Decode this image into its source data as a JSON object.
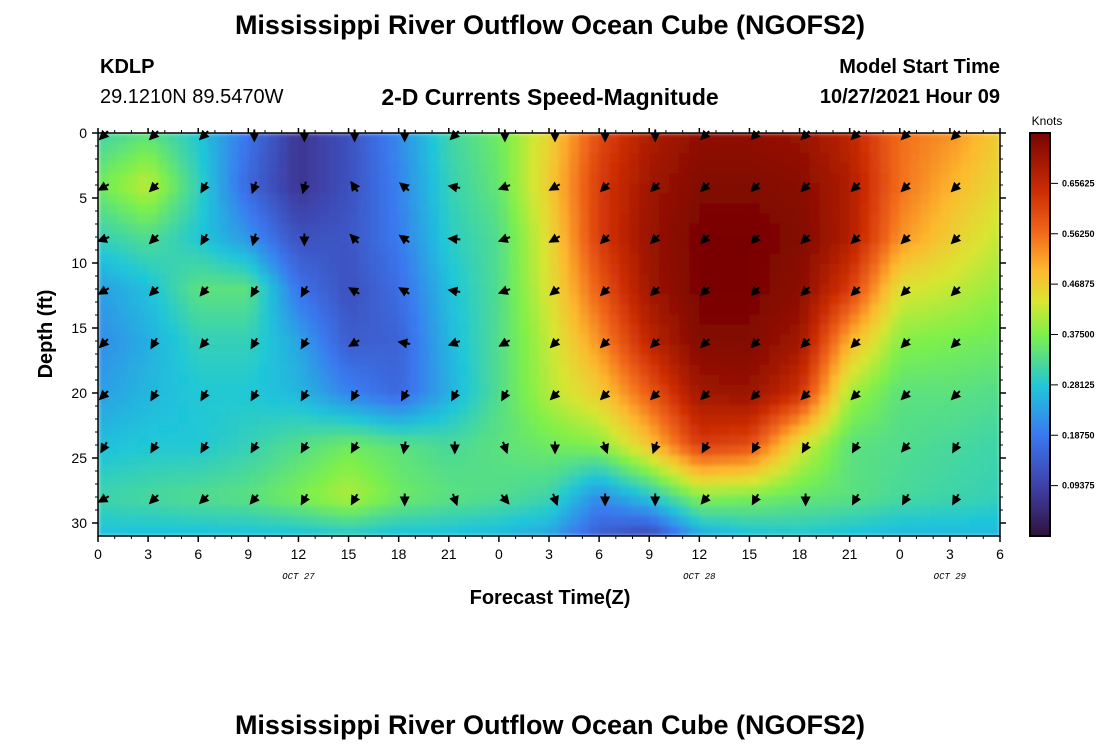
{
  "header": {
    "title": "Mississippi River Outflow Ocean Cube (NGOFS2)",
    "station_id": "KDLP",
    "station_coords": "29.1210N  89.5470W",
    "product": "2-D Currents Speed-Magnitude",
    "model_start_label": "Model Start Time",
    "model_start_value": "10/27/2021 Hour 09"
  },
  "footer": {
    "title": "Mississippi River Outflow Ocean Cube (NGOFS2)"
  },
  "chart_data": {
    "type": "heatmap",
    "xlabel": "Forecast Time(Z)",
    "ylabel": "Depth (ft)",
    "colorbar_label": "Knots",
    "x_tick_labels": [
      "0",
      "3",
      "6",
      "9",
      "12",
      "15",
      "18",
      "21",
      "0",
      "3",
      "6",
      "9",
      "12",
      "15",
      "18",
      "21",
      "0",
      "3",
      "6"
    ],
    "x_range_hours": [
      0,
      54
    ],
    "date_labels": [
      {
        "text": "OCT 27",
        "hour": 12
      },
      {
        "text": "OCT 28",
        "hour": 36
      },
      {
        "text": "OCT 29",
        "hour": 51
      }
    ],
    "y_ticks": [
      0,
      5,
      10,
      15,
      20,
      25,
      30
    ],
    "ylim": [
      0,
      31
    ],
    "y_inverted": true,
    "colorbar_ticks": [
      "0.09375",
      "0.18750",
      "0.28125",
      "0.37500",
      "0.46875",
      "0.56250",
      "0.65625"
    ],
    "colorbar_range": [
      0,
      0.75
    ],
    "arrow_times": [
      0,
      3,
      6,
      9,
      12,
      15,
      18,
      21,
      24,
      27,
      30,
      33,
      36,
      39,
      42,
      45,
      48,
      51
    ],
    "arrow_depths": [
      0,
      4,
      8,
      12,
      16,
      20,
      24,
      28
    ],
    "arrow_directions_deg": [
      [
        315,
        315,
        315,
        0,
        0,
        0,
        0,
        315,
        0,
        0,
        0,
        0,
        315,
        315,
        315,
        315,
        315,
        315
      ],
      [
        300,
        315,
        330,
        340,
        345,
        215,
        230,
        260,
        290,
        300,
        315,
        315,
        315,
        315,
        315,
        315,
        315,
        315
      ],
      [
        290,
        315,
        330,
        345,
        0,
        225,
        235,
        265,
        290,
        300,
        315,
        315,
        315,
        315,
        315,
        315,
        315,
        315
      ],
      [
        300,
        315,
        320,
        330,
        330,
        240,
        240,
        260,
        290,
        310,
        315,
        315,
        315,
        315,
        315,
        315,
        315,
        315
      ],
      [
        315,
        330,
        320,
        330,
        330,
        300,
        260,
        290,
        300,
        315,
        315,
        315,
        315,
        315,
        315,
        315,
        315,
        315
      ],
      [
        315,
        330,
        330,
        330,
        330,
        330,
        330,
        330,
        330,
        315,
        315,
        315,
        315,
        315,
        315,
        315,
        315,
        315
      ],
      [
        330,
        330,
        330,
        330,
        330,
        330,
        350,
        0,
        20,
        0,
        20,
        340,
        330,
        330,
        330,
        330,
        320,
        330
      ],
      [
        300,
        315,
        315,
        320,
        330,
        330,
        0,
        20,
        40,
        20,
        0,
        0,
        320,
        330,
        0,
        330,
        330,
        330
      ]
    ],
    "speed_field_knots": {
      "times": [
        0,
        3,
        6,
        9,
        12,
        15,
        18,
        21,
        24,
        27,
        30,
        33,
        36,
        39,
        42,
        45,
        48,
        51,
        54
      ],
      "depths": [
        0,
        4,
        8,
        12,
        16,
        20,
        24,
        28,
        31
      ],
      "values": [
        [
          0.31,
          0.34,
          0.28,
          0.18,
          0.07,
          0.12,
          0.21,
          0.31,
          0.36,
          0.46,
          0.6,
          0.68,
          0.72,
          0.72,
          0.71,
          0.66,
          0.56,
          0.53,
          0.47
        ],
        [
          0.36,
          0.42,
          0.3,
          0.16,
          0.07,
          0.12,
          0.2,
          0.3,
          0.35,
          0.47,
          0.62,
          0.7,
          0.74,
          0.74,
          0.73,
          0.68,
          0.56,
          0.5,
          0.45
        ],
        [
          0.3,
          0.33,
          0.28,
          0.22,
          0.12,
          0.13,
          0.19,
          0.29,
          0.33,
          0.45,
          0.62,
          0.71,
          0.75,
          0.75,
          0.74,
          0.68,
          0.53,
          0.47,
          0.42
        ],
        [
          0.23,
          0.27,
          0.34,
          0.34,
          0.18,
          0.12,
          0.17,
          0.27,
          0.33,
          0.44,
          0.58,
          0.7,
          0.75,
          0.75,
          0.73,
          0.62,
          0.44,
          0.42,
          0.39
        ],
        [
          0.21,
          0.25,
          0.3,
          0.3,
          0.24,
          0.14,
          0.15,
          0.26,
          0.33,
          0.42,
          0.53,
          0.66,
          0.74,
          0.74,
          0.7,
          0.5,
          0.38,
          0.37,
          0.36
        ],
        [
          0.23,
          0.26,
          0.28,
          0.28,
          0.26,
          0.2,
          0.16,
          0.25,
          0.33,
          0.41,
          0.47,
          0.58,
          0.7,
          0.71,
          0.64,
          0.4,
          0.34,
          0.34,
          0.33
        ],
        [
          0.27,
          0.28,
          0.28,
          0.3,
          0.33,
          0.36,
          0.34,
          0.32,
          0.34,
          0.36,
          0.38,
          0.48,
          0.62,
          0.6,
          0.44,
          0.34,
          0.33,
          0.32,
          0.31
        ],
        [
          0.31,
          0.32,
          0.33,
          0.34,
          0.37,
          0.41,
          0.36,
          0.34,
          0.33,
          0.31,
          0.21,
          0.28,
          0.38,
          0.37,
          0.35,
          0.34,
          0.32,
          0.31,
          0.3
        ],
        [
          0.27,
          0.27,
          0.27,
          0.27,
          0.27,
          0.28,
          0.27,
          0.27,
          0.26,
          0.24,
          0.14,
          0.1,
          0.24,
          0.27,
          0.28,
          0.27,
          0.26,
          0.26,
          0.26
        ]
      ]
    }
  }
}
